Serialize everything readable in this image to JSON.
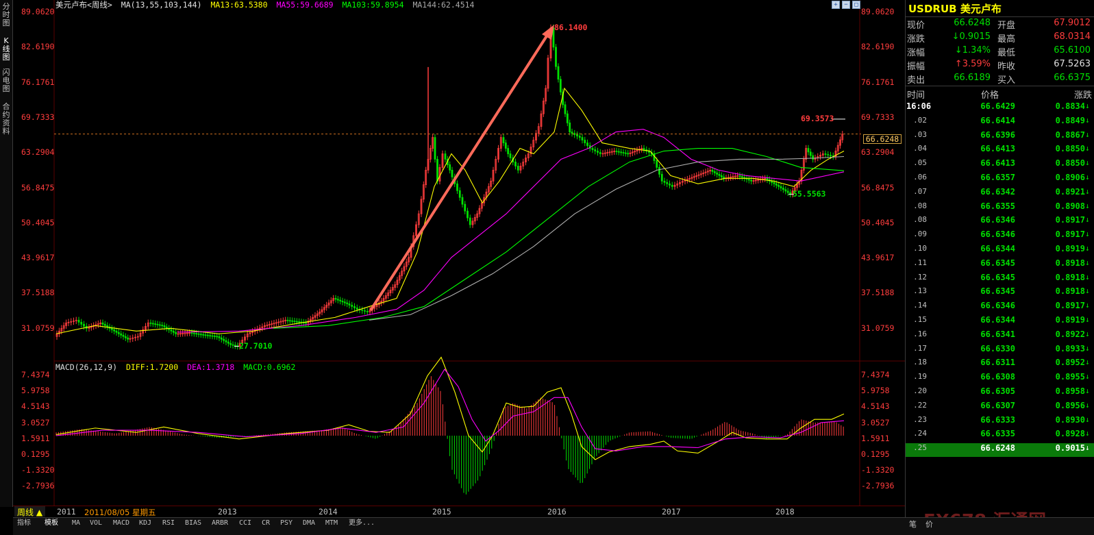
{
  "left_tabs": [
    "分时图",
    "K线图",
    "闪电图",
    "合约资料"
  ],
  "legend_main": {
    "symbol": "美元卢布<周线>",
    "ma_params": "MA(13,55,103,144)",
    "ma13": "MA13:63.5380",
    "ma55": "MA55:59.6689",
    "ma103": "MA103:59.8954",
    "ma144": "MA144:62.4514"
  },
  "legend_macd": {
    "params": "MACD(26,12,9)",
    "diff": "DIFF:1.7200",
    "dea": "DEA:1.3718",
    "macd": "MACD:0.6962"
  },
  "price_ticks": [
    "89.0620",
    "82.6190",
    "76.1761",
    "69.7333",
    "63.2904",
    "56.8475",
    "50.4045",
    "43.9617",
    "37.5188",
    "31.0759"
  ],
  "macd_ticks": [
    "7.4374",
    "5.9758",
    "4.5143",
    "3.0527",
    "1.5911",
    "0.1295",
    "-1.3320",
    "-2.7936"
  ],
  "annotations": {
    "high": "86.1400",
    "low1": "27.7010",
    "low2": "55.5563",
    "recent_high": "69.3573",
    "current": "66.6248"
  },
  "x_axis": {
    "labels": [
      "2011",
      "2013",
      "2014",
      "2015",
      "2016",
      "2017",
      "2018"
    ],
    "cursor_date": "2011/08/05 星期五",
    "period": "周线 ▲"
  },
  "indicator_tabs": [
    "指标",
    "模板",
    "MA",
    "VOL",
    "MACD",
    "KDJ",
    "RSI",
    "BIAS",
    "ARBR",
    "CCI",
    "CR",
    "PSY",
    "DMA",
    "MTM",
    "更多..."
  ],
  "quote": {
    "code": "USDRUB",
    "name": "美元卢布",
    "rows": [
      {
        "k1": "现价",
        "v1": "66.6248",
        "c1": "#00e000",
        "k2": "开盘",
        "v2": "67.9012",
        "c2": "#ff3d3d"
      },
      {
        "k1": "涨跌",
        "v1": "↓0.9015",
        "c1": "#00e000",
        "k2": "最高",
        "v2": "68.0314",
        "c2": "#ff3d3d"
      },
      {
        "k1": "涨幅",
        "v1": "↓1.34%",
        "c1": "#00e000",
        "k2": "最低",
        "v2": "65.6100",
        "c2": "#00e000"
      },
      {
        "k1": "振幅",
        "v1": "↑3.59%",
        "c1": "#ff3d3d",
        "k2": "昨收",
        "v2": "67.5263",
        "c2": "#e0e0e0"
      },
      {
        "k1": "卖出",
        "v1": "66.6189",
        "c1": "#00e000",
        "k2": "买入",
        "v2": "66.6375",
        "c2": "#00e000"
      }
    ]
  },
  "ticks_header": {
    "time": "时间",
    "price": "价格",
    "change": "涨跌"
  },
  "ticks": [
    {
      "t": "16:06",
      "p": "66.6429",
      "c": "0.8834"
    },
    {
      "t": ".02",
      "p": "66.6414",
      "c": "0.8849"
    },
    {
      "t": ".03",
      "p": "66.6396",
      "c": "0.8867"
    },
    {
      "t": ".04",
      "p": "66.6413",
      "c": "0.8850"
    },
    {
      "t": ".05",
      "p": "66.6413",
      "c": "0.8850"
    },
    {
      "t": ".06",
      "p": "66.6357",
      "c": "0.8906"
    },
    {
      "t": ".07",
      "p": "66.6342",
      "c": "0.8921"
    },
    {
      "t": ".08",
      "p": "66.6355",
      "c": "0.8908"
    },
    {
      "t": ".08",
      "p": "66.6346",
      "c": "0.8917"
    },
    {
      "t": ".09",
      "p": "66.6346",
      "c": "0.8917"
    },
    {
      "t": ".10",
      "p": "66.6344",
      "c": "0.8919"
    },
    {
      "t": ".11",
      "p": "66.6345",
      "c": "0.8918"
    },
    {
      "t": ".12",
      "p": "66.6345",
      "c": "0.8918"
    },
    {
      "t": ".13",
      "p": "66.6345",
      "c": "0.8918"
    },
    {
      "t": ".14",
      "p": "66.6346",
      "c": "0.8917"
    },
    {
      "t": ".15",
      "p": "66.6344",
      "c": "0.8919"
    },
    {
      "t": ".16",
      "p": "66.6341",
      "c": "0.8922"
    },
    {
      "t": ".17",
      "p": "66.6330",
      "c": "0.8933"
    },
    {
      "t": ".18",
      "p": "66.6311",
      "c": "0.8952"
    },
    {
      "t": ".19",
      "p": "66.6308",
      "c": "0.8955"
    },
    {
      "t": ".20",
      "p": "66.6305",
      "c": "0.8958"
    },
    {
      "t": ".22",
      "p": "66.6307",
      "c": "0.8956"
    },
    {
      "t": ".23",
      "p": "66.6333",
      "c": "0.8930"
    },
    {
      "t": ".24",
      "p": "66.6335",
      "c": "0.8928"
    },
    {
      "t": ".25",
      "p": "66.6248",
      "c": "0.9015"
    }
  ],
  "watermark": "FX678 汇通网",
  "colors": {
    "ma13": "#ffff00",
    "ma55": "#ff00ff",
    "ma103": "#00ff00",
    "ma144": "#b0b0b0",
    "up": "#ff3d3d",
    "down": "#00e000",
    "arrow": "#ff6a5a"
  }
}
